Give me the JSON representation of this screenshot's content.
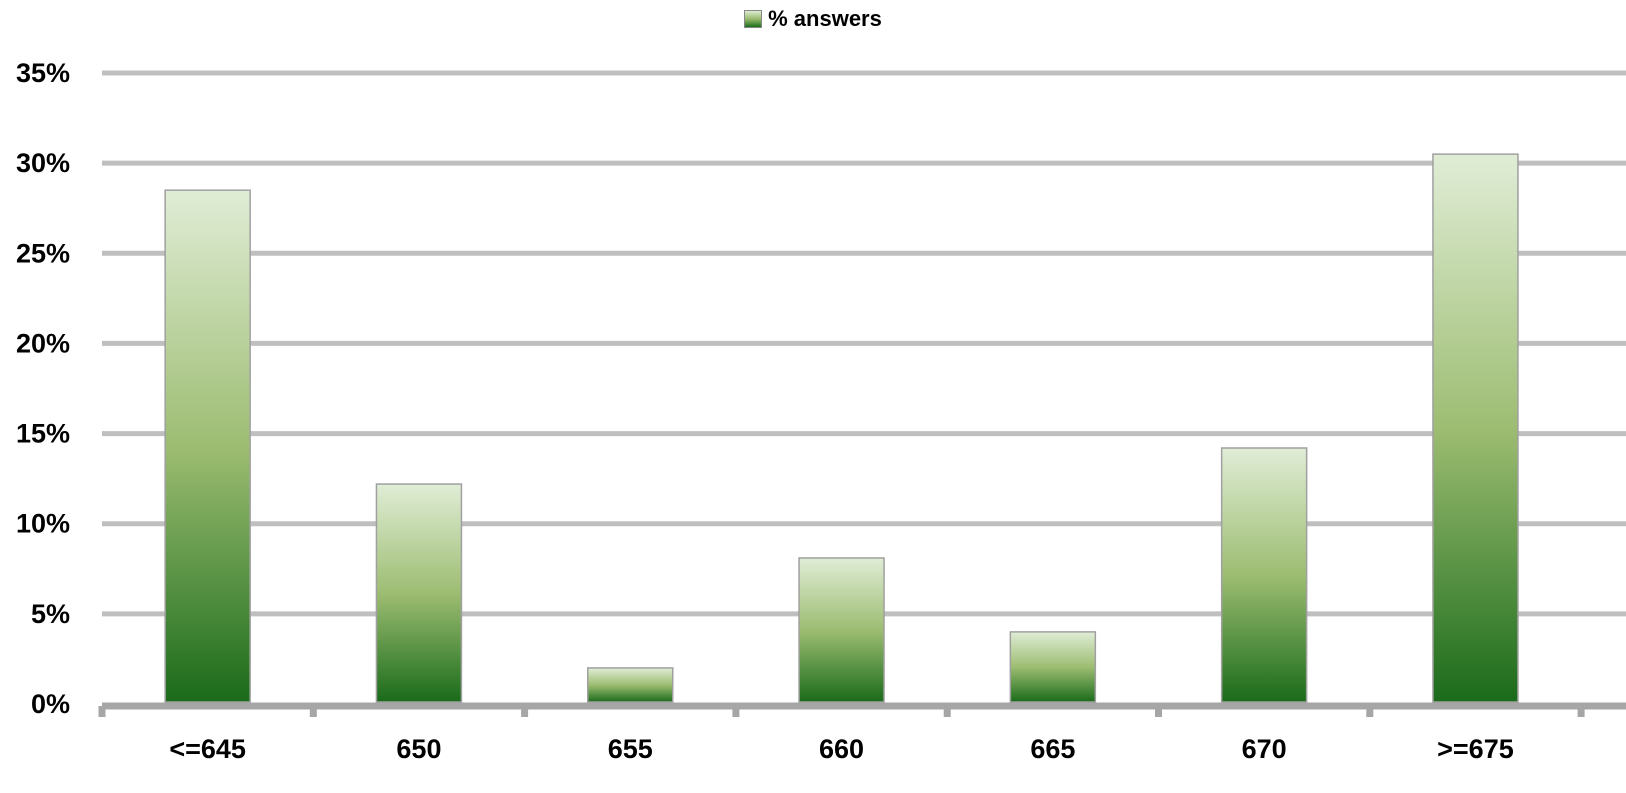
{
  "chart_data": {
    "type": "bar",
    "categories": [
      "<=645",
      "650",
      "655",
      "660",
      "665",
      "670",
      ">=675"
    ],
    "series": [
      {
        "name": "% answers",
        "values": [
          28.5,
          12.2,
          2.0,
          8.1,
          4.0,
          14.2,
          30.5
        ]
      }
    ],
    "ylim": [
      0,
      35
    ],
    "yticks": [
      0,
      5,
      10,
      15,
      20,
      25,
      30,
      35
    ],
    "ytick_labels": [
      "0%",
      "5%",
      "10%",
      "15%",
      "20%",
      "25%",
      "30%",
      "35%"
    ],
    "grid": true,
    "legend_position": "top-center",
    "colors": {
      "bar_top": "#e0edd6",
      "bar_mid": "#9dbd72",
      "bar_bottom": "#1a6b1a",
      "grid": "#bfbfbf",
      "axis": "#a6a6a6"
    }
  }
}
